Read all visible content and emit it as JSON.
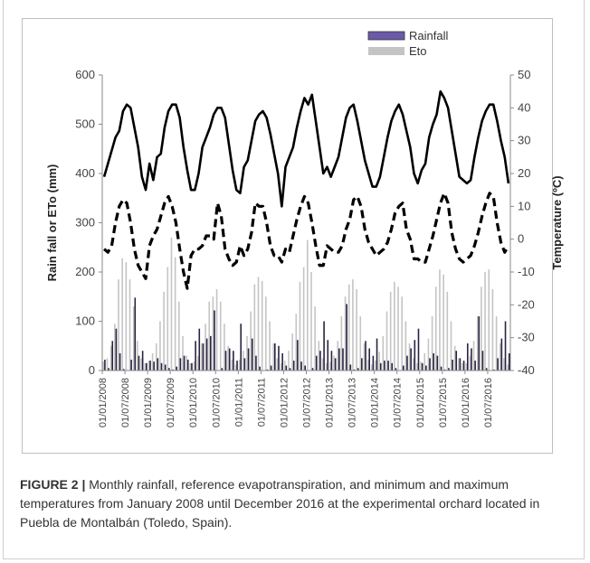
{
  "caption": {
    "figure_label": "FIGURE 2 |",
    "text": " Monthly rainfall, reference evapotranspiration, and minimum and maximum temperatures from January 2008 until December 2016 at the experimental orchard located in Puebla de Montalbán (Toledo, Spain)."
  },
  "colors": {
    "rainfall": "#2a2340",
    "rainfall_legend": "#6b5aa8",
    "eto": "#c4c4c4",
    "temperature": "#000000"
  },
  "chart_data": {
    "type": "bar",
    "title": "",
    "ylabel": "Rain fall or ETo (mm)",
    "y2label": "Temperature (ºC)",
    "xlabel": "",
    "ylim": [
      0,
      600
    ],
    "y2lim": [
      -40,
      50
    ],
    "yticks": [
      0,
      100,
      200,
      300,
      400,
      500,
      600
    ],
    "y2ticks": [
      -40,
      -30,
      -20,
      -10,
      0,
      10,
      20,
      30,
      40,
      50
    ],
    "legend_position": "top-center",
    "legend": [
      "Rainfall",
      "Eto"
    ],
    "x_tick_labels": [
      "01/01/2008",
      "01/07/2008",
      "01/01/2009",
      "01/07/2009",
      "01/01/2010",
      "01/07/2010",
      "01/01/2011",
      "01/07/2011",
      "01/01/2012",
      "01/07/2012",
      "01/01/2013",
      "01/07/2013",
      "01/01/2014",
      "01/07/2014",
      "01/01/2015",
      "01/07/2015",
      "01/01/2016",
      "01/07/2016"
    ],
    "start_month": "2008-01",
    "series": [
      {
        "name": "Rainfall",
        "axis": "left",
        "style": "bar",
        "values": [
          22,
          5,
          60,
          85,
          35,
          3,
          0,
          22,
          148,
          30,
          40,
          15,
          20,
          18,
          25,
          15,
          12,
          5,
          2,
          8,
          25,
          30,
          22,
          15,
          60,
          85,
          55,
          65,
          70,
          122,
          0,
          5,
          40,
          45,
          40,
          20,
          95,
          25,
          45,
          65,
          30,
          8,
          0,
          2,
          10,
          55,
          50,
          35,
          10,
          5,
          20,
          62,
          18,
          10,
          0,
          5,
          30,
          40,
          100,
          62,
          40,
          25,
          45,
          45,
          135,
          12,
          2,
          5,
          25,
          60,
          45,
          30,
          65,
          15,
          20,
          20,
          15,
          5,
          0,
          10,
          30,
          45,
          62,
          85,
          15,
          10,
          25,
          35,
          30,
          8,
          2,
          5,
          22,
          40,
          25,
          20,
          55,
          45,
          20,
          110,
          40,
          5,
          0,
          2,
          25,
          65,
          100,
          35
        ]
      },
      {
        "name": "Eto",
        "axis": "left",
        "style": "bar",
        "values": [
          18,
          25,
          50,
          95,
          185,
          228,
          220,
          185,
          130,
          60,
          25,
          15,
          20,
          35,
          55,
          100,
          160,
          210,
          270,
          230,
          140,
          70,
          30,
          15,
          18,
          30,
          55,
          95,
          140,
          150,
          165,
          140,
          95,
          50,
          22,
          12,
          22,
          40,
          70,
          120,
          175,
          190,
          182,
          150,
          100,
          55,
          25,
          15,
          20,
          40,
          75,
          115,
          180,
          210,
          265,
          200,
          130,
          60,
          25,
          15,
          18,
          30,
          60,
          110,
          150,
          175,
          185,
          165,
          110,
          55,
          22,
          12,
          20,
          38,
          70,
          120,
          160,
          180,
          170,
          150,
          100,
          55,
          25,
          15,
          18,
          35,
          65,
          110,
          170,
          205,
          195,
          160,
          100,
          50,
          25,
          15,
          15,
          30,
          60,
          110,
          170,
          200,
          205,
          165,
          110,
          55,
          25,
          12
        ]
      },
      {
        "name": "Max temperature",
        "axis": "right",
        "style": "solid-line",
        "values": [
          19,
          23,
          27,
          31,
          33,
          39,
          41,
          40,
          34,
          28,
          19,
          15,
          23,
          18,
          25,
          26,
          34,
          39,
          41,
          41,
          37,
          28,
          21,
          15,
          15,
          20,
          28,
          31,
          34,
          38,
          40,
          40,
          37,
          29,
          21,
          15,
          14,
          22,
          24,
          30,
          36,
          38,
          39,
          37,
          32,
          26,
          20,
          10,
          22,
          25,
          28,
          34,
          39,
          43,
          41,
          44,
          36,
          28,
          20,
          22,
          19,
          22,
          25,
          31,
          37,
          40,
          41,
          36,
          30,
          24,
          20,
          16,
          16,
          19,
          25,
          31,
          36,
          39,
          41,
          38,
          33,
          28,
          20,
          17,
          21,
          23,
          31,
          35,
          38,
          45,
          43,
          40,
          33,
          26,
          19,
          18,
          17,
          18,
          25,
          31,
          36,
          39,
          41,
          41,
          36,
          30,
          25,
          17
        ]
      },
      {
        "name": "Min temperature",
        "axis": "right",
        "style": "dashed-line",
        "values": [
          -3,
          -4,
          -2,
          5,
          10,
          12,
          11,
          5,
          -3,
          -8,
          -10,
          -12,
          -2,
          1,
          3,
          7,
          11,
          13,
          10,
          5,
          -3,
          -10,
          -15,
          -5,
          -3,
          -3,
          -2,
          1,
          1,
          0,
          11,
          7,
          -3,
          -6,
          -8,
          -7,
          -2,
          -5,
          -3,
          2,
          11,
          10,
          10,
          5,
          -2,
          -5,
          -5,
          -7,
          -3,
          -4,
          1,
          6,
          10,
          13,
          11,
          5,
          -2,
          -8,
          -8,
          -2,
          -3,
          -4,
          -4,
          -2,
          3,
          6,
          12,
          13,
          10,
          3,
          -1,
          -3,
          -5,
          -4,
          -3,
          -1,
          3,
          8,
          10,
          11,
          3,
          0,
          -6,
          -6,
          -7,
          -7,
          -3,
          1,
          6,
          11,
          14,
          11,
          2,
          -3,
          -6,
          -7,
          -6,
          -5,
          -2,
          2,
          7,
          11,
          14,
          13,
          5,
          -1,
          -4,
          -2
        ]
      }
    ]
  }
}
